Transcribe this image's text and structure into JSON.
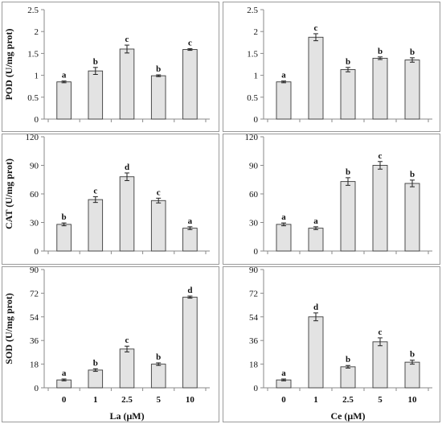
{
  "chart_data": [
    {
      "type": "bar",
      "id": "pod-la",
      "categories": [
        "0",
        "1",
        "2.5",
        "5",
        "10"
      ],
      "values": [
        0.85,
        1.1,
        1.6,
        0.99,
        1.59
      ],
      "errors": [
        0.02,
        0.08,
        0.09,
        0.02,
        0.02
      ],
      "significance": [
        "a",
        "b",
        "c",
        "b",
        "c"
      ],
      "yticks": [
        "0",
        "0.5",
        "1",
        "1.5",
        "2",
        "2.5"
      ],
      "ylim": [
        0,
        2.5
      ],
      "ylabel": "POD (U/mg prot)",
      "xlabel": ""
    },
    {
      "type": "bar",
      "id": "pod-ce",
      "categories": [
        "0",
        "1",
        "2.5",
        "5",
        "10"
      ],
      "values": [
        0.85,
        1.87,
        1.13,
        1.39,
        1.35
      ],
      "errors": [
        0.02,
        0.08,
        0.05,
        0.03,
        0.05
      ],
      "significance": [
        "a",
        "c",
        "b",
        "b",
        "b"
      ],
      "yticks": [
        "0",
        "0.5",
        "1",
        "1.5",
        "2",
        "2.5"
      ],
      "ylim": [
        0,
        2.5
      ],
      "ylabel": "",
      "xlabel": ""
    },
    {
      "type": "bar",
      "id": "cat-la",
      "categories": [
        "0",
        "1",
        "2.5",
        "5",
        "10"
      ],
      "values": [
        28,
        54,
        78,
        53,
        24
      ],
      "errors": [
        1.5,
        3,
        4,
        2.5,
        1.5
      ],
      "significance": [
        "b",
        "c",
        "d",
        "c",
        "a"
      ],
      "yticks": [
        "0",
        "30",
        "60",
        "90",
        "120"
      ],
      "ylim": [
        0,
        120
      ],
      "ylabel": "CAT (U/mg prot)",
      "xlabel": ""
    },
    {
      "type": "bar",
      "id": "cat-ce",
      "categories": [
        "0",
        "1",
        "2.5",
        "5",
        "10"
      ],
      "values": [
        28,
        24,
        73,
        90,
        71
      ],
      "errors": [
        1.5,
        1.5,
        4,
        4,
        3.5
      ],
      "significance": [
        "a",
        "a",
        "b",
        "c",
        "b"
      ],
      "yticks": [
        "0",
        "30",
        "60",
        "90",
        "120"
      ],
      "ylim": [
        0,
        120
      ],
      "ylabel": "",
      "xlabel": ""
    },
    {
      "type": "bar",
      "id": "sod-la",
      "categories": [
        "0",
        "1",
        "2.5",
        "5",
        "10"
      ],
      "values": [
        6,
        13.5,
        29.5,
        18,
        69
      ],
      "errors": [
        0.7,
        1,
        2.2,
        1,
        0.8
      ],
      "significance": [
        "a",
        "b",
        "c",
        "b",
        "d"
      ],
      "yticks": [
        "0",
        "18",
        "36",
        "54",
        "72",
        "90"
      ],
      "ylim": [
        0,
        90
      ],
      "ylabel": "SOD (U/mg prot)",
      "xlabel": "La (μM)"
    },
    {
      "type": "bar",
      "id": "sod-ce",
      "categories": [
        "0",
        "1",
        "2.5",
        "5",
        "10"
      ],
      "values": [
        6,
        54,
        16,
        35,
        19.5
      ],
      "errors": [
        0.7,
        3,
        1,
        3,
        1.5
      ],
      "significance": [
        "a",
        "d",
        "b",
        "c",
        "b"
      ],
      "yticks": [
        "0",
        "18",
        "36",
        "54",
        "72",
        "90"
      ],
      "ylim": [
        0,
        90
      ],
      "ylabel": "",
      "xlabel": "Ce (μM)"
    }
  ],
  "colors": {
    "bar_fill": "#e3e3e3",
    "bar_stroke": "#3a3a3a",
    "axis": "#8a8a8a",
    "frame": "#9a9a9a"
  }
}
